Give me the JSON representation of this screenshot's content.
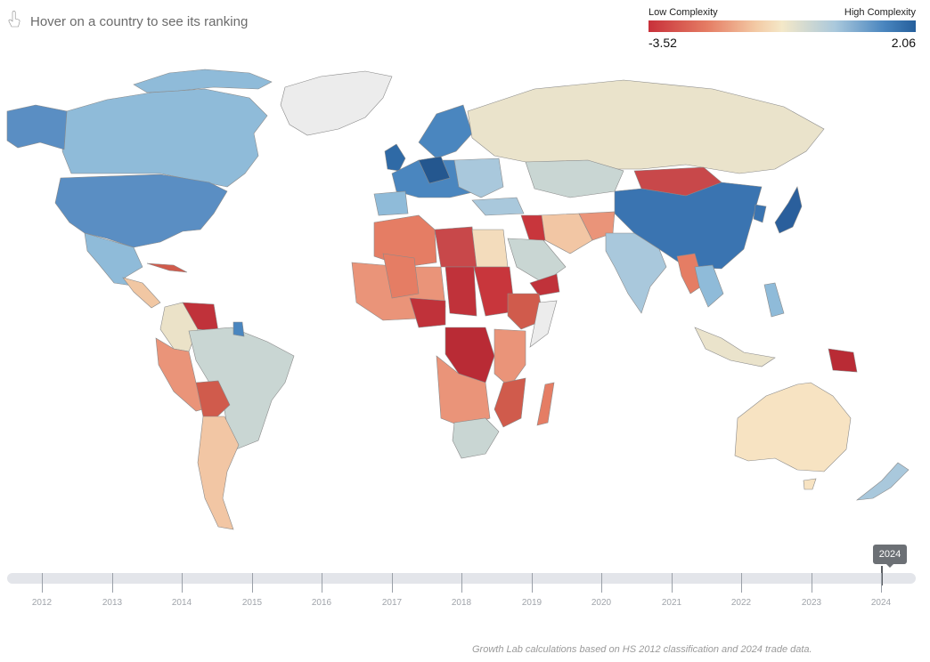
{
  "header": {
    "hint_text": "Hover on a country to see its ranking",
    "hint_icon": "pointer-hand-icon"
  },
  "legend": {
    "low_label": "Low Complexity",
    "high_label": "High Complexity",
    "min_value": "-3.52",
    "max_value": "2.06",
    "low_color": "#c8303a",
    "mid_color": "#f4e8c8",
    "high_color": "#255f9c"
  },
  "timeline": {
    "years": [
      "2012",
      "2013",
      "2014",
      "2015",
      "2016",
      "2017",
      "2018",
      "2019",
      "2020",
      "2021",
      "2022",
      "2023",
      "2024"
    ],
    "selected_year": "2024"
  },
  "footer": {
    "source": "Growth Lab calculations based on HS 2012 classification and 2024 trade data."
  }
}
